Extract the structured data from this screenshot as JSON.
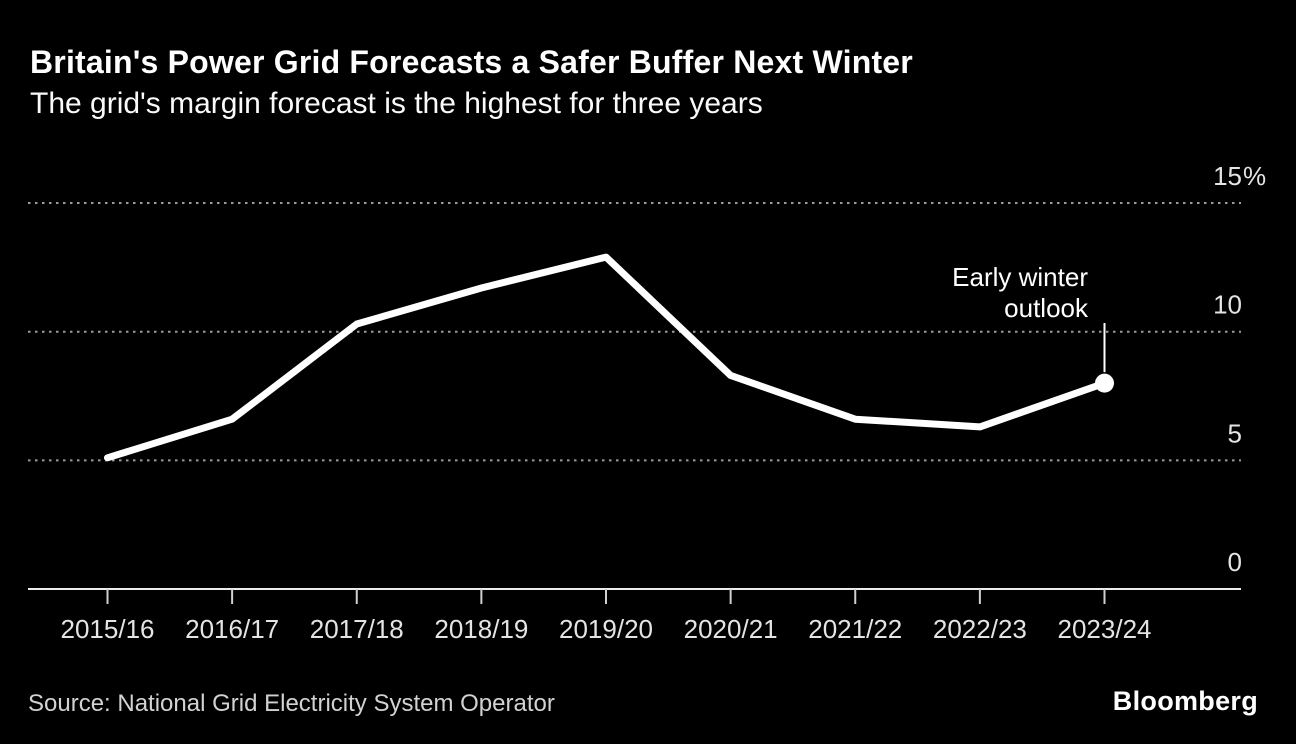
{
  "header": {
    "title": "Britain's Power Grid Forecasts a Safer Buffer Next Winter",
    "subtitle": "The grid's margin forecast is the highest for three years"
  },
  "chart_data": {
    "type": "line",
    "title": "Britain's Power Grid Forecasts a Safer Buffer Next Winter",
    "subtitle": "The grid's margin forecast is the highest for three years",
    "categories": [
      "2015/16",
      "2016/17",
      "2017/18",
      "2018/19",
      "2019/20",
      "2020/21",
      "2021/22",
      "2022/23",
      "2023/24"
    ],
    "series": [
      {
        "name": "Grid margin forecast",
        "values": [
          5.1,
          6.6,
          10.3,
          11.7,
          12.9,
          8.3,
          6.6,
          6.3,
          8.0
        ]
      }
    ],
    "ylabel": "%",
    "ylim": [
      0,
      15
    ],
    "ytick_values": [
      15,
      10,
      5,
      0
    ],
    "ytick_labels": [
      "15%",
      "10",
      "5",
      "0"
    ],
    "yaxis_side": "right",
    "grid": "dashed-horizontal",
    "last_point_marker": true,
    "annotation": {
      "text": "Early winter outlook",
      "line1": "Early winter",
      "line2": "outlook",
      "target_category": "2023/24"
    },
    "colors": {
      "background": "#000000",
      "line": "#ffffff",
      "marker": "#ffffff",
      "gridline": "#9b9b9b",
      "axis_line": "#ececec",
      "tick_mark": "#d0d0d0",
      "tick_label": "#e4e4e4",
      "annotation_text": "#ffffff",
      "annotation_line": "#ffffff"
    }
  },
  "footer": {
    "source": "Source: National Grid Electricity System Operator",
    "logo": "Bloomberg"
  }
}
